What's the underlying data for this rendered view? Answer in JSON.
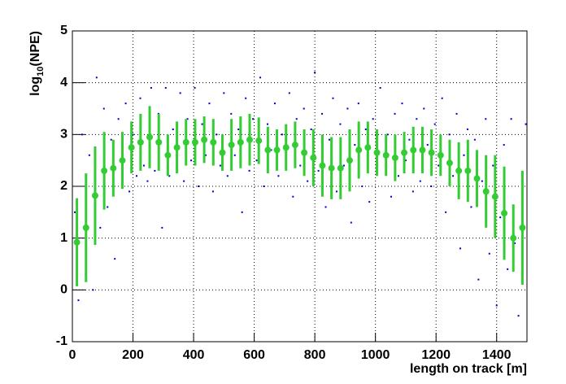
{
  "chart_data": {
    "type": "scatter",
    "x_label": "length on track [m]",
    "y_label": [
      "log",
      "10",
      "(NPE)"
    ],
    "xlim": [
      0,
      1500
    ],
    "ylim": [
      -1,
      5
    ],
    "xticks": [
      0,
      200,
      400,
      600,
      800,
      1000,
      1200,
      1400
    ],
    "yticks": [
      -1,
      0,
      1,
      2,
      3,
      4,
      5
    ],
    "grid": true,
    "series": [
      {
        "color": "#0000cc",
        "x": [
          8,
          20,
          32,
          44,
          56,
          68,
          80,
          92,
          104,
          116,
          128,
          140,
          152,
          164,
          176,
          188,
          200,
          212,
          224,
          236,
          248,
          260,
          272,
          284,
          296,
          308,
          320,
          332,
          344,
          356,
          368,
          380,
          392,
          404,
          416,
          428,
          440,
          452,
          464,
          476,
          488,
          500,
          512,
          524,
          536,
          548,
          560,
          572,
          584,
          596,
          608,
          620,
          632,
          644,
          656,
          668,
          680,
          692,
          704,
          716,
          728,
          740,
          752,
          764,
          776,
          788,
          800,
          812,
          824,
          836,
          848,
          860,
          872,
          884,
          896,
          908,
          920,
          932,
          944,
          956,
          968,
          980,
          992,
          1004,
          1016,
          1028,
          1040,
          1052,
          1064,
          1076,
          1088,
          1100,
          1112,
          1124,
          1136,
          1148,
          1160,
          1172,
          1184,
          1196,
          1208,
          1220,
          1232,
          1244,
          1256,
          1268,
          1280,
          1292,
          1304,
          1316,
          1328,
          1340,
          1352,
          1364,
          1376,
          1388,
          1400,
          1412,
          1424,
          1436,
          1448,
          1460,
          1472,
          1484,
          1496
        ],
        "values": [
          1.5,
          -0.2,
          3.0,
          0.3,
          2.6,
          0.0,
          4.1,
          1.2,
          3.5,
          1.6,
          2.9,
          0.6,
          3.3,
          2.0,
          3.6,
          1.9,
          3.0,
          2.2,
          3.7,
          2.4,
          2.1,
          3.9,
          2.3,
          3.4,
          1.2,
          3.9,
          2.2,
          3.1,
          2.6,
          3.8,
          2.1,
          3.3,
          2.5,
          3.9,
          2.0,
          3.2,
          2.6,
          3.6,
          1.9,
          3.0,
          2.4,
          3.8,
          2.2,
          3.4,
          2.6,
          3.1,
          1.5,
          3.7,
          2.3,
          3.3,
          2.5,
          4.1,
          2.0,
          3.2,
          2.7,
          3.6,
          2.2,
          3.0,
          2.9,
          3.8,
          1.8,
          3.3,
          2.4,
          3.5,
          2.1,
          3.1,
          4.2,
          2.3,
          3.4,
          1.6,
          2.9,
          3.7,
          1.9,
          3.2,
          2.4,
          3.5,
          1.3,
          2.8,
          3.6,
          2.0,
          3.1,
          1.7,
          3.3,
          2.3,
          3.9,
          2.6,
          3.0,
          1.8,
          3.4,
          2.2,
          3.6,
          2.5,
          2.9,
          1.9,
          3.3,
          2.1,
          3.5,
          2.8,
          2.0,
          3.2,
          2.4,
          3.7,
          1.5,
          3.0,
          2.2,
          3.4,
          0.8,
          2.6,
          3.1,
          1.6,
          2.9,
          0.2,
          2.1,
          3.3,
          0.7,
          2.4,
          -0.3,
          1.4,
          2.8,
          0.4,
          3.3,
          0.9,
          -0.5,
          1.8,
          3.2
        ]
      },
      {
        "color": "#33cc33",
        "x": [
          15,
          45,
          75,
          105,
          135,
          165,
          195,
          225,
          255,
          285,
          315,
          345,
          375,
          405,
          435,
          465,
          495,
          525,
          555,
          585,
          615,
          645,
          675,
          705,
          735,
          765,
          795,
          825,
          855,
          885,
          915,
          945,
          975,
          1005,
          1035,
          1065,
          1095,
          1125,
          1155,
          1185,
          1215,
          1245,
          1275,
          1305,
          1335,
          1365,
          1395,
          1425,
          1455,
          1485
        ],
        "values": [
          0.92,
          1.2,
          1.82,
          2.3,
          2.35,
          2.5,
          2.75,
          2.85,
          2.95,
          2.85,
          2.6,
          2.75,
          2.85,
          2.85,
          2.9,
          2.85,
          2.65,
          2.8,
          2.85,
          2.9,
          2.88,
          2.7,
          2.7,
          2.75,
          2.8,
          2.65,
          2.55,
          2.4,
          2.35,
          2.35,
          2.5,
          2.7,
          2.75,
          2.65,
          2.6,
          2.55,
          2.65,
          2.7,
          2.7,
          2.65,
          2.6,
          2.45,
          2.3,
          2.3,
          2.15,
          1.9,
          1.8,
          1.48,
          1.0,
          1.2
        ],
        "errors": [
          0.85,
          1.05,
          0.95,
          0.75,
          0.55,
          0.55,
          0.5,
          0.55,
          0.6,
          0.55,
          0.4,
          0.5,
          0.45,
          0.45,
          0.45,
          0.45,
          0.35,
          0.5,
          0.5,
          0.5,
          0.45,
          0.45,
          0.4,
          0.45,
          0.45,
          0.45,
          0.55,
          0.6,
          0.6,
          0.6,
          0.6,
          0.55,
          0.5,
          0.45,
          0.4,
          0.45,
          0.4,
          0.45,
          0.45,
          0.45,
          0.4,
          0.45,
          0.55,
          0.6,
          0.55,
          0.7,
          0.8,
          0.9,
          0.65,
          1.1
        ]
      }
    ]
  }
}
